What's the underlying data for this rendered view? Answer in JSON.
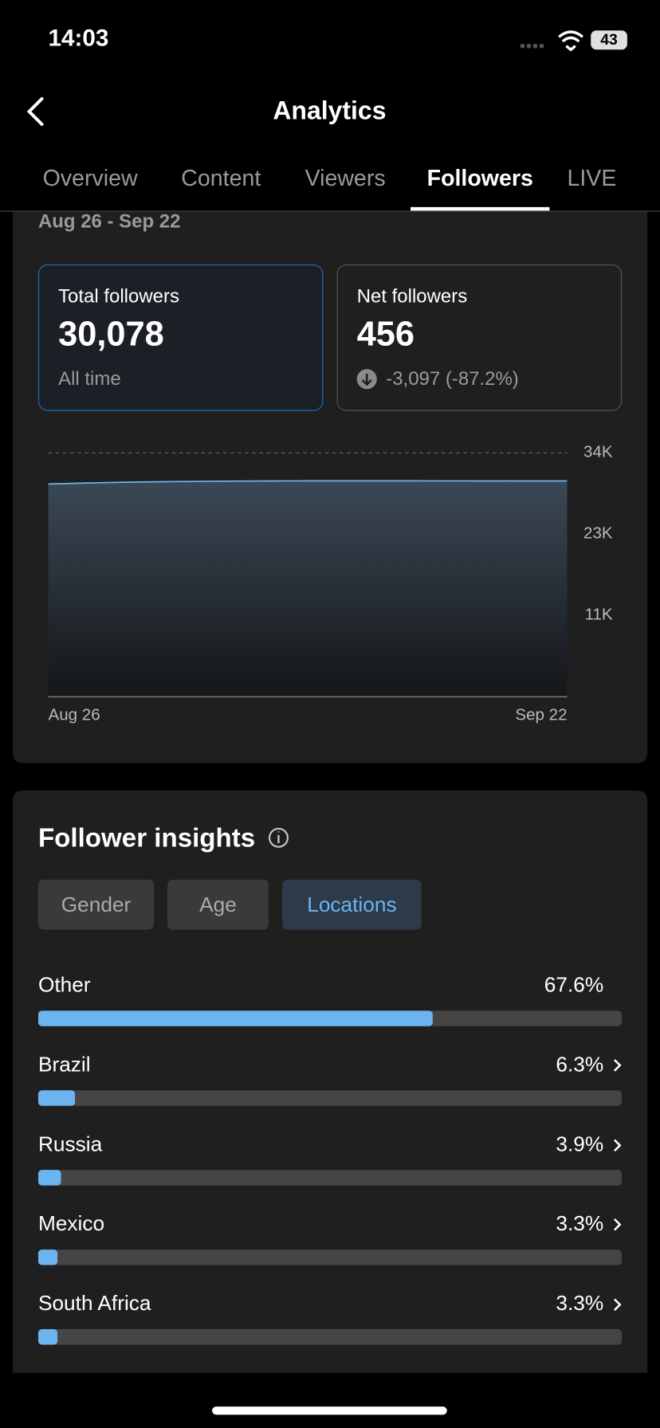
{
  "status_bar": {
    "time": "14:03",
    "battery": "43"
  },
  "header": {
    "title": "Analytics"
  },
  "tabs": [
    "Overview",
    "Content",
    "Viewers",
    "Followers",
    "LIVE"
  ],
  "active_tab": 3,
  "date_range": "Aug 26 - Sep 22",
  "cards": [
    {
      "label": "Total followers",
      "value": "30,078",
      "note": "All time"
    },
    {
      "label": "Net followers",
      "value": "456",
      "note": "-3,097 (-87.2%)"
    }
  ],
  "chart": {
    "type": "area",
    "categories": [
      "Aug 26",
      null,
      null,
      null,
      null,
      null,
      null,
      null,
      null,
      null,
      null,
      null,
      null,
      null,
      null,
      null,
      null,
      null,
      null,
      null,
      null,
      null,
      null,
      null,
      null,
      null,
      null,
      "Sep 22"
    ],
    "values": [
      29650,
      29720,
      29790,
      29850,
      29900,
      29940,
      29970,
      30000,
      30020,
      30040,
      30060,
      30070,
      30080,
      30090,
      30100,
      30100,
      30100,
      30100,
      30095,
      30095,
      30090,
      30090,
      30085,
      30085,
      30080,
      30080,
      30078,
      30078
    ],
    "color": "#6cb4f0",
    "ylim": [
      0,
      34000
    ],
    "yticks": [
      {
        "value": 11333,
        "label": "11K"
      },
      {
        "value": 22667,
        "label": "23K"
      },
      {
        "value": 34000,
        "label": "34K"
      }
    ],
    "grid": true
  },
  "insights": {
    "title": "Follower insights",
    "filters": [
      "Gender",
      "Age",
      "Locations"
    ],
    "active_filter": 2,
    "locations": {
      "categories": [
        "Other",
        "Brazil",
        "Russia",
        "Mexico",
        "South Africa"
      ],
      "values": [
        67.6,
        6.3,
        3.9,
        3.3,
        3.3
      ],
      "value_labels": [
        "67.6%",
        "6.3%",
        "3.9%",
        "3.3%",
        "3.3%"
      ],
      "xlim": [
        0,
        100
      ],
      "color": "#6cb4f0"
    }
  }
}
